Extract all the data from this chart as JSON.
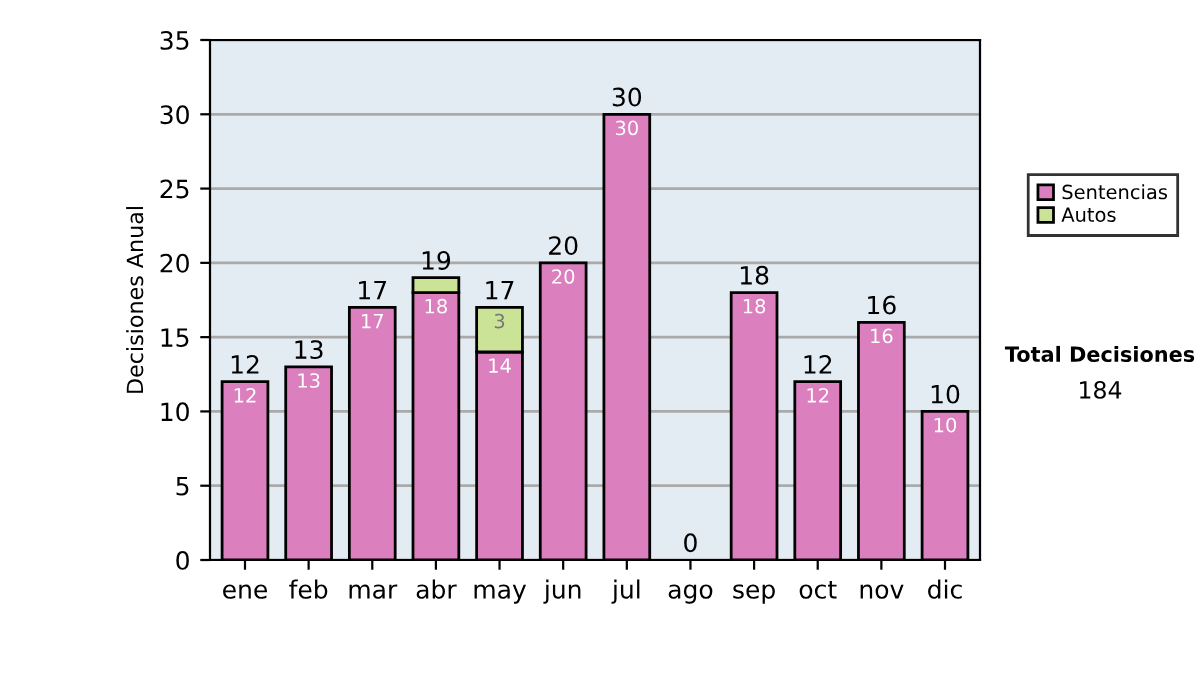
{
  "chart_data": {
    "type": "bar",
    "stacked": true,
    "ylabel": "Decisiones Anual",
    "categories": [
      "ene",
      "feb",
      "mar",
      "abr",
      "may",
      "jun",
      "jul",
      "ago",
      "sep",
      "oct",
      "nov",
      "dic"
    ],
    "series": [
      {
        "name": "Sentencias",
        "color": "#dc7fbe",
        "values": [
          12,
          13,
          17,
          18,
          14,
          20,
          30,
          0,
          18,
          12,
          16,
          10
        ],
        "value_labels": [
          "12",
          "13",
          "17",
          "18",
          "14",
          "20",
          "30",
          null,
          "18",
          "12",
          "16",
          "10"
        ]
      },
      {
        "name": "Autos",
        "color": "#cbe396",
        "values": [
          0,
          0,
          0,
          1,
          3,
          0,
          0,
          0,
          0,
          0,
          0,
          0
        ],
        "value_labels": [
          null,
          null,
          null,
          null,
          "3",
          null,
          null,
          null,
          null,
          null,
          null,
          null
        ]
      }
    ],
    "totals": [
      "12",
      "13",
      "17",
      "19",
      "17",
      "20",
      "30",
      "0",
      "18",
      "12",
      "16",
      "10"
    ],
    "ylim": [
      0,
      35
    ],
    "yticks": [
      0,
      5,
      10,
      15,
      20,
      25,
      30,
      35
    ],
    "grid": "y",
    "legend": "right",
    "annotations": [
      "Total Decisiones",
      "184"
    ]
  }
}
